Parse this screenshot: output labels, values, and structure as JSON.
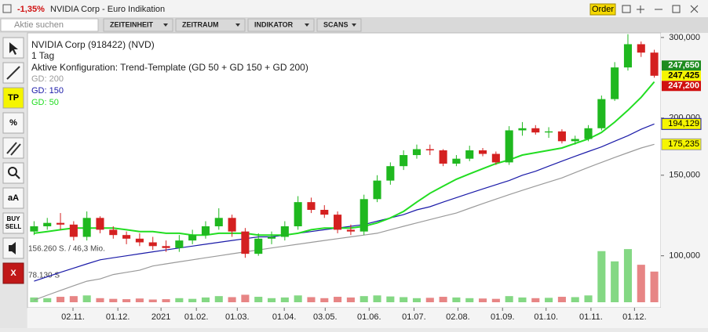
{
  "header": {
    "change": "-1,35%",
    "title": "NVIDIA Corp - Euro Indikation",
    "order": "Order"
  },
  "menu": {
    "search": "Aktie suchen",
    "items": [
      "ZEITEINHEIT",
      "ZEITRAUM",
      "INDIKATOR",
      "SCANS"
    ]
  },
  "toolbar": {
    "buttons": [
      "TP",
      "%",
      "aA",
      "BUY",
      "SELL",
      "X"
    ]
  },
  "chart_data": {
    "type": "candlestick",
    "title": "NVIDIA Corp (918422) (NVD)",
    "subtitle": "1 Tag",
    "annotation": "Aktive Konfiguration: Trend-Template (GD 50 + GD 150 + GD 200)",
    "up_color": "#1fb81f",
    "down_color": "#d42020",
    "log_scale": true,
    "xlim": [
      -0.5,
      47.5
    ],
    "xticks": [
      {
        "value": 2.95,
        "label": "02.11."
      },
      {
        "value": 6.35,
        "label": "01.12."
      },
      {
        "value": 9.62,
        "label": "2021"
      },
      {
        "value": 12.3,
        "label": "01.02."
      },
      {
        "value": 15.4,
        "label": "01.03."
      },
      {
        "value": 18.96,
        "label": "01.04."
      },
      {
        "value": 22.06,
        "label": "03.05."
      },
      {
        "value": 25.39,
        "label": "01.06."
      },
      {
        "value": 28.79,
        "label": "01.07."
      },
      {
        "value": 32.12,
        "label": "02.08."
      },
      {
        "value": 35.5,
        "label": "01.09."
      },
      {
        "value": 38.8,
        "label": "01.10."
      },
      {
        "value": 42.2,
        "label": "01.11."
      },
      {
        "value": 45.5,
        "label": "01.12."
      }
    ],
    "ylim": [
      77,
      307
    ],
    "yticks": [
      {
        "value": 300,
        "label": "300,000"
      },
      {
        "value": 200,
        "label": "200,000"
      },
      {
        "value": 150,
        "label": "150,000"
      },
      {
        "value": 100,
        "label": "100,000"
      }
    ],
    "open": [
      113,
      116,
      118,
      117,
      110,
      121,
      114,
      111,
      109,
      107,
      105,
      104,
      108,
      111,
      116,
      121,
      113,
      101,
      109,
      110,
      116,
      131,
      126,
      123,
      114,
      113,
      133,
      146,
      157,
      166,
      171,
      170,
      159,
      163,
      170,
      167,
      160,
      188,
      190,
      186,
      187,
      178,
      180,
      190,
      220,
      258,
      290,
      278
    ],
    "high": [
      119,
      121,
      124,
      119,
      125,
      122,
      116,
      113,
      112,
      110,
      108,
      111,
      114,
      119,
      127,
      123,
      115,
      112,
      113,
      119,
      135,
      134,
      129,
      125,
      117,
      136,
      150,
      160,
      170,
      175,
      175,
      171,
      166,
      174,
      172,
      169,
      192,
      196,
      193,
      191,
      189,
      183,
      193,
      224,
      265,
      305,
      294,
      282
    ],
    "low": [
      111,
      114,
      114,
      108,
      108,
      112,
      109,
      106,
      105,
      103,
      102,
      102,
      106,
      109,
      114,
      110,
      99,
      100,
      106,
      108,
      114,
      124,
      121,
      112,
      111,
      111,
      131,
      143,
      154,
      163,
      166,
      157,
      157,
      161,
      165,
      158,
      158,
      183,
      184,
      181,
      176,
      175,
      178,
      188,
      218,
      254,
      272,
      245
    ],
    "close": [
      116,
      118,
      117,
      110,
      121,
      114,
      111,
      109,
      107,
      105,
      104,
      108,
      111,
      116,
      121,
      113,
      101,
      109,
      110,
      116,
      131,
      126,
      123,
      114,
      113,
      133,
      146,
      157,
      166,
      171,
      170,
      159,
      163,
      170,
      167,
      160,
      188,
      190,
      186,
      187,
      178,
      180,
      190,
      220,
      258,
      290,
      278,
      247.425
    ],
    "series": [
      {
        "name": "GD: 200",
        "color": "#9a9a9a",
        "values": [
          80,
          82,
          84,
          86,
          88,
          89,
          91,
          92,
          93,
          95,
          96,
          97,
          98,
          99,
          100,
          101,
          102,
          103,
          104,
          105,
          106,
          107,
          108,
          109,
          110,
          111,
          112,
          114,
          116,
          118,
          120,
          122,
          124,
          127,
          130,
          133,
          136,
          139,
          142,
          145,
          148,
          152,
          156,
          160,
          164,
          168,
          172,
          175.235
        ],
        "value_labels": [
          null,
          null,
          null,
          null,
          null,
          null,
          null,
          null,
          null,
          null,
          null,
          null,
          null,
          null,
          null,
          null,
          null,
          null,
          null,
          null,
          null,
          null,
          null,
          null,
          null,
          null,
          null,
          null,
          null,
          null,
          null,
          null,
          null,
          null,
          null,
          null,
          null,
          null,
          null,
          null,
          null,
          null,
          null,
          null,
          null,
          null,
          null,
          "175,235"
        ]
      },
      {
        "name": "GD: 150",
        "color": "#1a1aa8",
        "values": [
          88,
          90,
          92,
          94,
          96,
          98,
          99,
          100,
          101,
          102,
          103,
          104,
          105,
          106,
          107,
          108,
          109,
          110,
          110,
          111,
          112,
          113,
          114,
          115,
          116,
          117,
          119,
          121,
          123,
          126,
          128,
          131,
          134,
          137,
          140,
          143,
          146,
          150,
          153,
          157,
          161,
          165,
          169,
          173,
          178,
          183,
          189,
          194.129
        ],
        "value_labels": [
          null,
          null,
          null,
          null,
          null,
          null,
          null,
          null,
          null,
          null,
          null,
          null,
          null,
          null,
          null,
          null,
          null,
          null,
          null,
          null,
          null,
          null,
          null,
          null,
          null,
          null,
          null,
          null,
          null,
          null,
          null,
          null,
          null,
          null,
          null,
          null,
          null,
          null,
          null,
          null,
          null,
          null,
          null,
          null,
          null,
          null,
          null,
          "194,129"
        ]
      },
      {
        "name": "GD: 50",
        "color": "#22dd22",
        "values": [
          112,
          113,
          114,
          115,
          115,
          115,
          115,
          114,
          113,
          113,
          112,
          112,
          111,
          111,
          112,
          112,
          112,
          111,
          111,
          111,
          112,
          114,
          115,
          115,
          115,
          116,
          118,
          121,
          125,
          131,
          137,
          142,
          147,
          151,
          155,
          159,
          162,
          166,
          168,
          170,
          172,
          176,
          180,
          186,
          196,
          208,
          222,
          240
        ]
      }
    ],
    "quote_labels": [
      {
        "value": 247.65,
        "label": "247,650",
        "color": "#1e8c1e",
        "text_color": "#ffffff"
      },
      {
        "value": 247.425,
        "label": "247,425",
        "color": "#f5f500",
        "text_color": "#000000"
      },
      {
        "value": 247.2,
        "label": "247,200",
        "color": "#d01010",
        "text_color": "#ffffff"
      }
    ],
    "volume": {
      "values": [
        14000,
        12000,
        16000,
        18000,
        20000,
        12000,
        10000,
        9000,
        11000,
        8000,
        9000,
        12000,
        10000,
        14000,
        18000,
        15000,
        22000,
        16000,
        12000,
        14000,
        20000,
        15000,
        12000,
        16000,
        14000,
        18000,
        20000,
        17000,
        15000,
        12000,
        13000,
        16000,
        14000,
        12000,
        11000,
        10000,
        18000,
        14000,
        12000,
        13000,
        16000,
        15000,
        20000,
        150000,
        120000,
        156000,
        110000,
        90000
      ],
      "ylim": [
        0,
        156260
      ],
      "yticks": [
        {
          "value": 156260,
          "label": "156.260 S. / 46,3 Mio."
        },
        {
          "value": 78130,
          "label": "78.130 S"
        }
      ]
    }
  }
}
